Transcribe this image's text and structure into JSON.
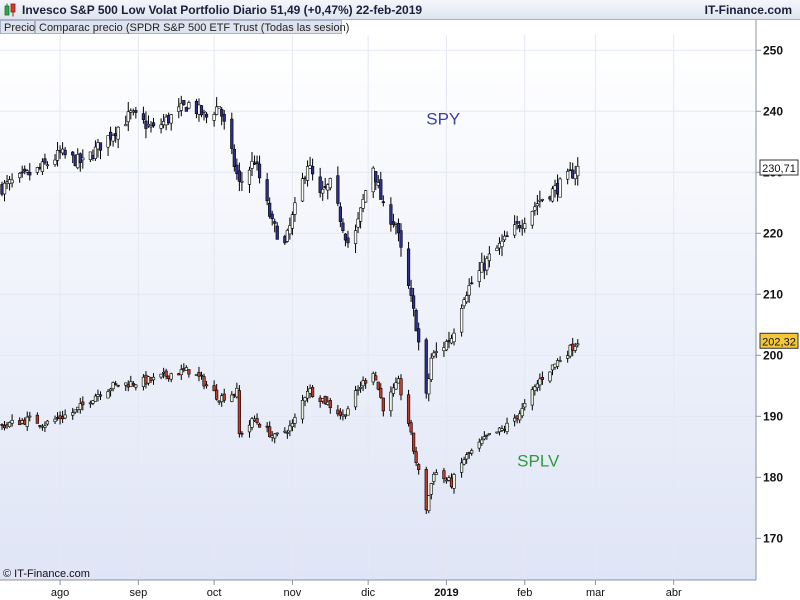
{
  "header": {
    "title": "Invesco S&P 500 Low Volat Portfolio   Diario   51,49 (+0,47%)   22-feb-2019",
    "brand": "IT-Finance.com"
  },
  "legend": {
    "price_label": "Precio",
    "compare_label": "Comparac precio (SPDR S&P 500 ETF Trust (Todas las sesion)"
  },
  "copyright": "© IT-Finance.com",
  "colors": {
    "spy_up": "#ffffff",
    "spy_down": "#2b2f8f",
    "splv_up": "#e8f5e0",
    "splv_down": "#c23a2a",
    "spy_label": "#3a3fa0",
    "splv_label": "#2f9a3a",
    "last_box_spy": "#ffffff",
    "last_box_splv": "#f2c83a"
  },
  "chart_data": {
    "type": "candlestick",
    "y_axis_ticks": [
      170,
      180,
      190,
      200,
      210,
      220,
      230,
      240,
      250
    ],
    "ylim": [
      163.5,
      252.5
    ],
    "x_start": "2018-07-09",
    "x_end": "2019-05-02",
    "x_ticks": [
      {
        "label": "ago",
        "date": "2018-08-01",
        "bold": false
      },
      {
        "label": "sep",
        "date": "2018-09-01",
        "bold": false
      },
      {
        "label": "oct",
        "date": "2018-10-01",
        "bold": false
      },
      {
        "label": "nov",
        "date": "2018-11-01",
        "bold": false
      },
      {
        "label": "dic",
        "date": "2018-12-01",
        "bold": false
      },
      {
        "label": "2019",
        "date": "2019-01-01",
        "bold": true
      },
      {
        "label": "feb",
        "date": "2019-02-01",
        "bold": false
      },
      {
        "label": "mar",
        "date": "2019-03-01",
        "bold": false
      },
      {
        "label": "abr",
        "date": "2019-04-01",
        "bold": false
      }
    ],
    "series": [
      {
        "name": "SPY",
        "last_value": "230,71",
        "label_position": {
          "date": "2018-12-24",
          "value": 237.8
        },
        "anchors": [
          [
            "2018-07-09",
            227.5
          ],
          [
            "2018-07-24",
            230.5
          ],
          [
            "2018-08-01",
            233.0
          ],
          [
            "2018-08-10",
            231.5
          ],
          [
            "2018-08-29",
            239.5
          ],
          [
            "2018-09-07",
            237.0
          ],
          [
            "2018-09-21",
            241.2
          ],
          [
            "2018-09-28",
            239.0
          ],
          [
            "2018-10-03",
            241.0
          ],
          [
            "2018-10-11",
            228.0
          ],
          [
            "2018-10-17",
            232.0
          ],
          [
            "2018-10-24",
            221.5
          ],
          [
            "2018-10-29",
            218.0
          ],
          [
            "2018-11-07",
            231.5
          ],
          [
            "2018-11-12",
            226.0
          ],
          [
            "2018-11-16",
            228.0
          ],
          [
            "2018-11-23",
            218.5
          ],
          [
            "2018-11-26",
            220.0
          ],
          [
            "2018-11-30",
            227.0
          ],
          [
            "2018-12-03",
            231.0
          ],
          [
            "2018-12-07",
            224.0
          ],
          [
            "2018-12-12",
            221.5
          ],
          [
            "2018-12-14",
            217.0
          ],
          [
            "2018-12-20",
            205.0
          ],
          [
            "2018-12-24",
            193.0
          ],
          [
            "2018-12-26",
            199.5
          ],
          [
            "2019-01-03",
            203.0
          ],
          [
            "2019-01-08",
            210.0
          ],
          [
            "2019-01-18",
            216.0
          ],
          [
            "2019-01-31",
            222.0
          ],
          [
            "2019-02-07",
            225.5
          ],
          [
            "2019-02-14",
            227.5
          ],
          [
            "2019-02-22",
            230.7
          ]
        ]
      },
      {
        "name": "SPLV",
        "last_value": "202,32",
        "label_position": {
          "date": "2019-01-29",
          "value": 181.8
        },
        "anchors": [
          [
            "2018-07-09",
            188.5
          ],
          [
            "2018-07-20",
            189.5
          ],
          [
            "2018-07-26",
            188.8
          ],
          [
            "2018-08-07",
            190.8
          ],
          [
            "2018-08-15",
            193.5
          ],
          [
            "2018-08-22",
            195.0
          ],
          [
            "2018-09-07",
            196.0
          ],
          [
            "2018-09-14",
            197.0
          ],
          [
            "2018-09-21",
            197.5
          ],
          [
            "2018-09-26",
            196.0
          ],
          [
            "2018-10-03",
            193.0
          ],
          [
            "2018-10-10",
            194.0
          ],
          [
            "2018-10-11",
            187.0
          ],
          [
            "2018-10-17",
            189.5
          ],
          [
            "2018-10-25",
            186.5
          ],
          [
            "2018-11-01",
            188.5
          ],
          [
            "2018-11-07",
            194.5
          ],
          [
            "2018-11-14",
            192.5
          ],
          [
            "2018-11-21",
            190.0
          ],
          [
            "2018-11-28",
            195.0
          ],
          [
            "2018-12-03",
            197.5
          ],
          [
            "2018-12-07",
            191.5
          ],
          [
            "2018-12-13",
            195.5
          ],
          [
            "2018-12-17",
            189.0
          ],
          [
            "2018-12-19",
            184.5
          ],
          [
            "2018-12-24",
            175.0
          ],
          [
            "2018-12-27",
            181.0
          ],
          [
            "2019-01-03",
            179.0
          ],
          [
            "2019-01-08",
            183.0
          ],
          [
            "2019-01-17",
            186.5
          ],
          [
            "2019-01-24",
            188.0
          ],
          [
            "2019-01-31",
            191.0
          ],
          [
            "2019-02-07",
            196.0
          ],
          [
            "2019-02-14",
            199.0
          ],
          [
            "2019-02-22",
            202.3
          ]
        ]
      }
    ]
  }
}
